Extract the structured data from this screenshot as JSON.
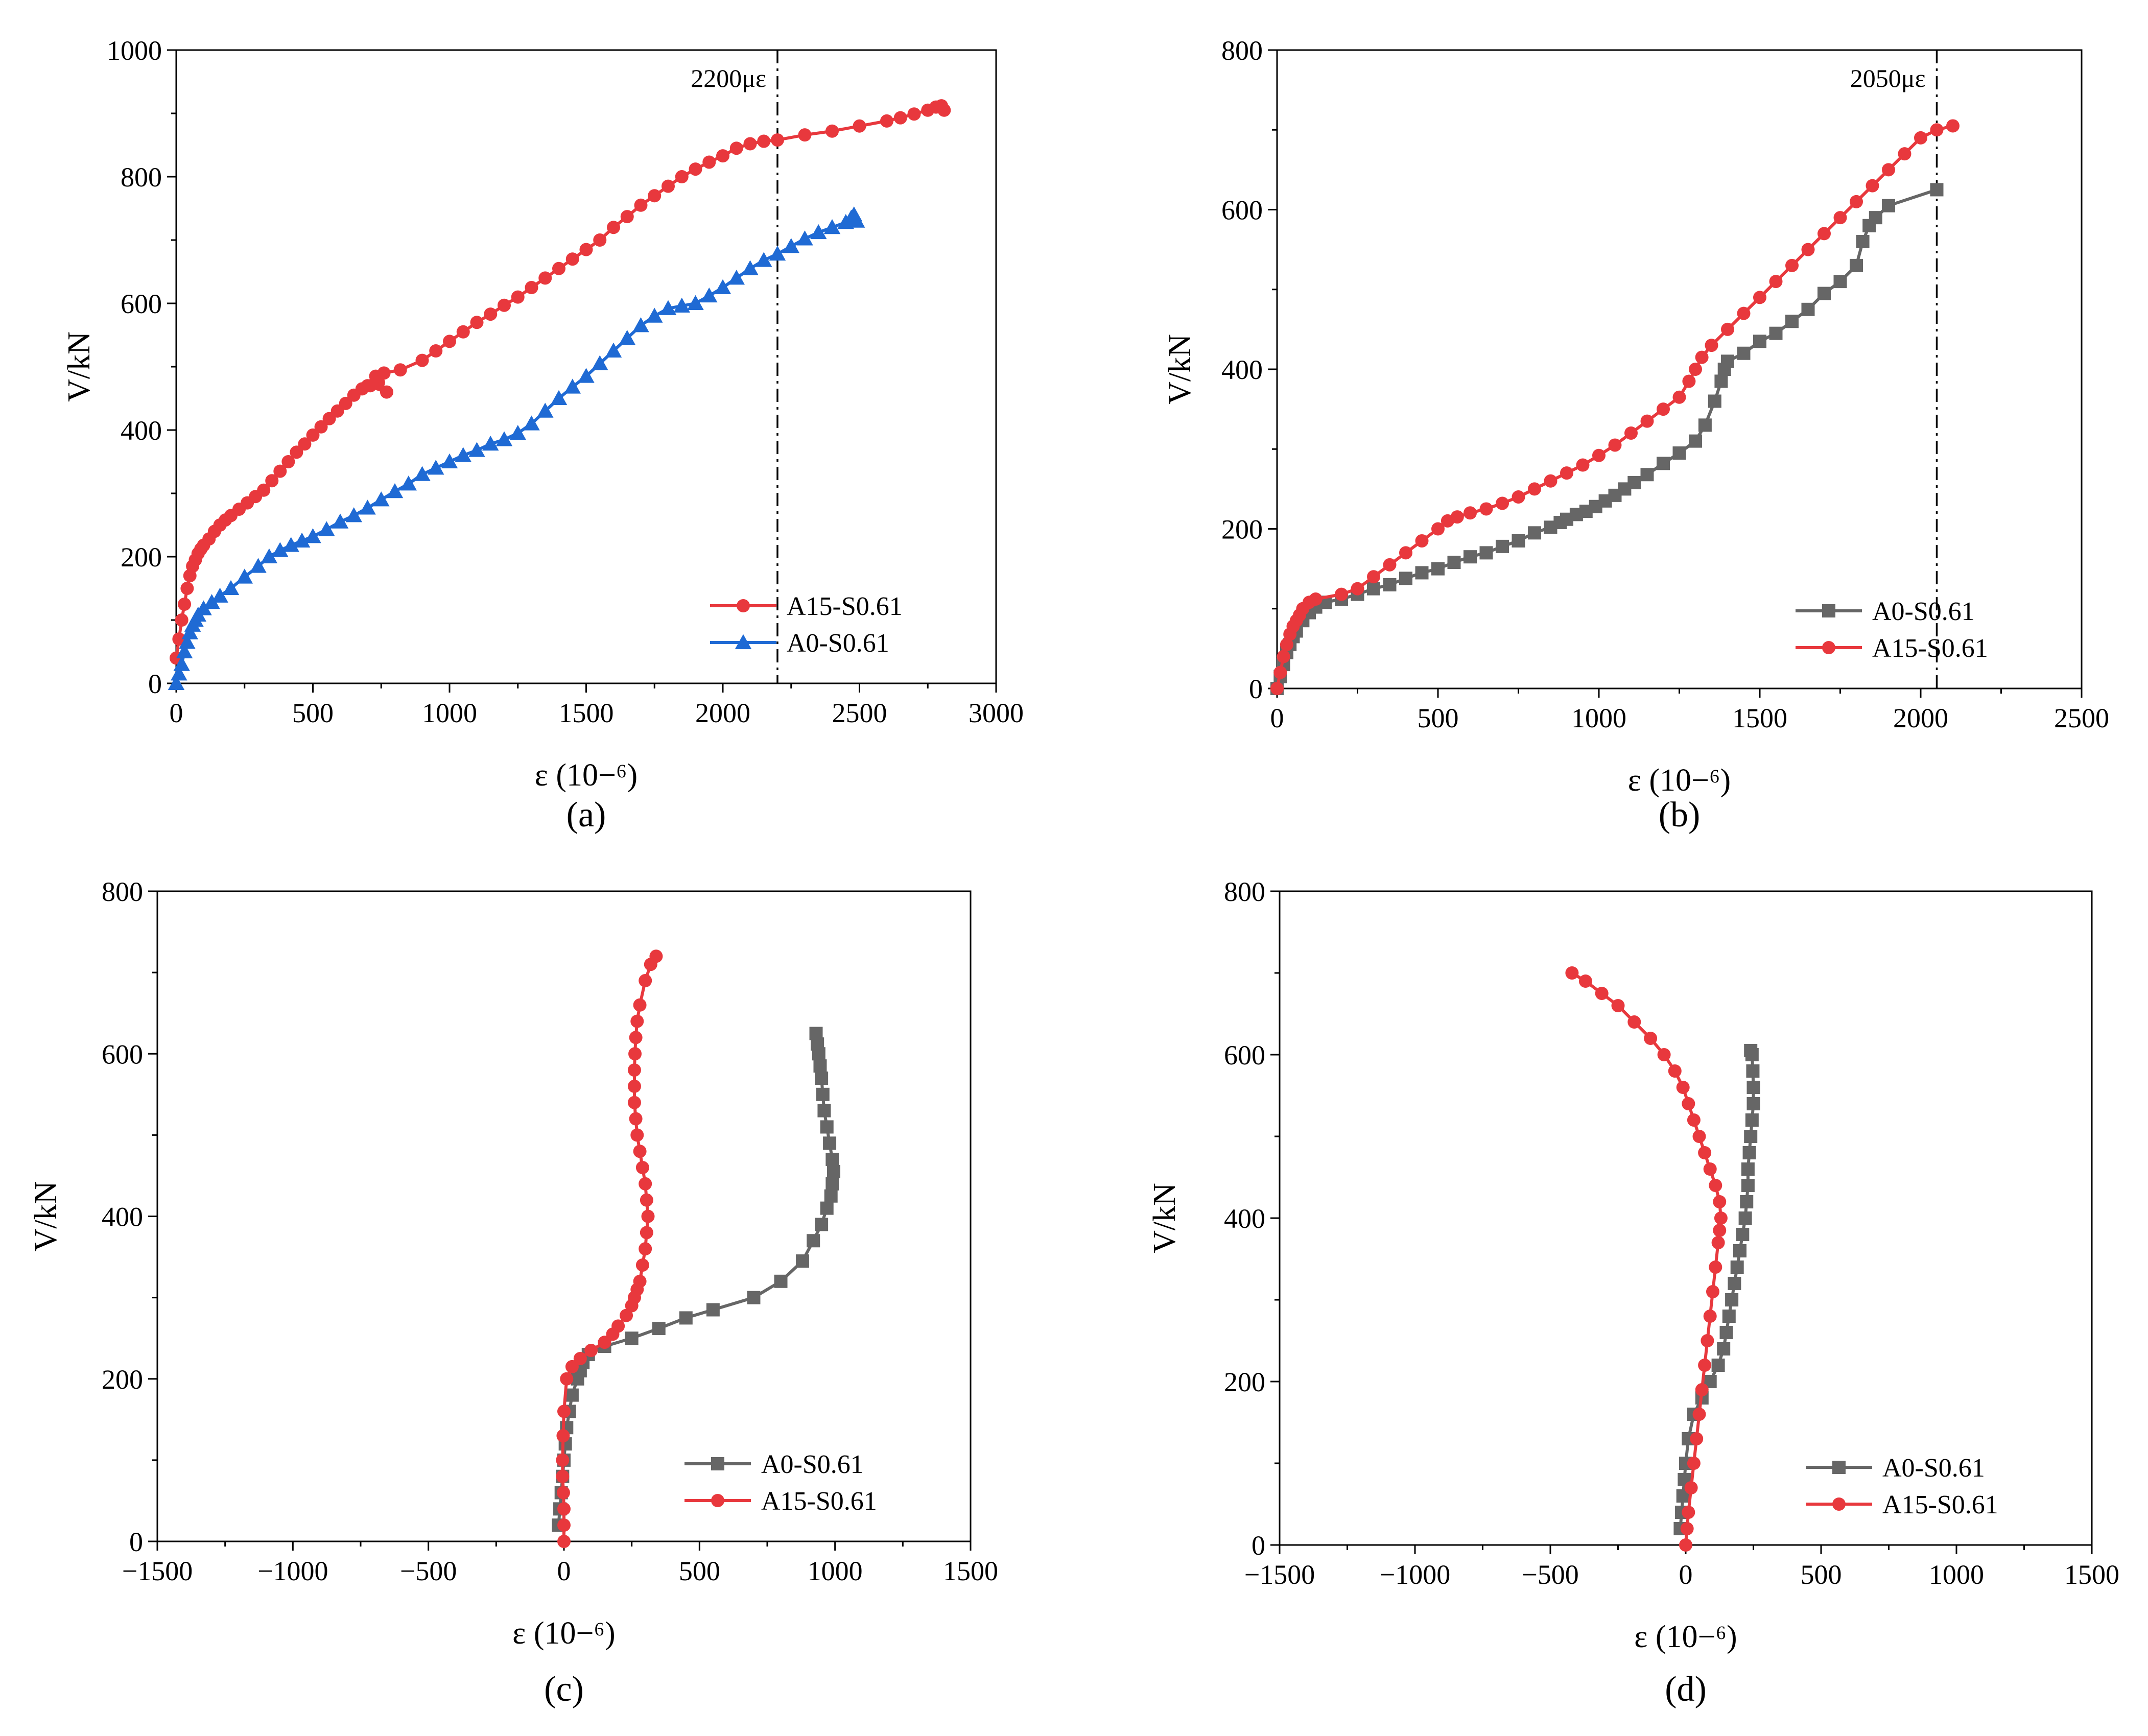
{
  "chart_data": [
    {
      "type": "line",
      "panel_label": "(a)",
      "xlabel": "ε (10−⁶)",
      "ylabel": "V/kN",
      "xlim": [
        0,
        3000
      ],
      "ylim": [
        0,
        1000
      ],
      "xticks": [
        0,
        500,
        1000,
        1500,
        2000,
        2500,
        3000
      ],
      "yticks": [
        0,
        200,
        400,
        600,
        800,
        1000
      ],
      "xtick_labels": [
        "0",
        "500",
        "1000",
        "1500",
        "2000",
        "2500",
        "3000"
      ],
      "ytick_labels": [
        "0",
        "200",
        "400",
        "600",
        "800",
        "1000"
      ],
      "legend_position": "bottom-right",
      "reference_line": {
        "x": 2200,
        "label": "2200με"
      },
      "series": [
        {
          "name": "A15-S0.61",
          "color": "#e8383d",
          "marker": "circle",
          "x": [
            0,
            10,
            20,
            30,
            40,
            50,
            60,
            70,
            80,
            90,
            100,
            120,
            140,
            160,
            180,
            200,
            230,
            260,
            290,
            320,
            350,
            380,
            410,
            440,
            470,
            500,
            530,
            560,
            590,
            620,
            650,
            680,
            710,
            740,
            770,
            700,
            730,
            760,
            820,
            900,
            950,
            1000,
            1050,
            1100,
            1150,
            1200,
            1250,
            1300,
            1350,
            1400,
            1450,
            1500,
            1550,
            1600,
            1650,
            1700,
            1750,
            1800,
            1850,
            1900,
            1950,
            2000,
            2050,
            2100,
            2150,
            2200,
            2300,
            2400,
            2500,
            2600,
            2650,
            2700,
            2750,
            2780,
            2800,
            2810
          ],
          "y": [
            40,
            70,
            100,
            125,
            150,
            170,
            185,
            195,
            205,
            212,
            218,
            228,
            240,
            250,
            258,
            265,
            275,
            285,
            295,
            305,
            320,
            335,
            350,
            365,
            378,
            392,
            405,
            418,
            430,
            442,
            455,
            465,
            470,
            475,
            460,
            470,
            485,
            490,
            495,
            510,
            525,
            540,
            555,
            570,
            583,
            597,
            610,
            625,
            640,
            655,
            670,
            685,
            700,
            720,
            737,
            755,
            770,
            785,
            800,
            812,
            823,
            833,
            845,
            852,
            856,
            858,
            866,
            872,
            880,
            888,
            893,
            899,
            905,
            910,
            912,
            905
          ]
        },
        {
          "name": "A0-S0.61",
          "color": "#1f6ad4",
          "marker": "triangle",
          "x": [
            0,
            10,
            20,
            30,
            40,
            50,
            60,
            70,
            80,
            100,
            130,
            160,
            200,
            250,
            300,
            340,
            380,
            420,
            460,
            500,
            550,
            600,
            650,
            700,
            750,
            800,
            850,
            900,
            950,
            1000,
            1050,
            1100,
            1150,
            1200,
            1250,
            1300,
            1350,
            1400,
            1450,
            1500,
            1550,
            1600,
            1650,
            1700,
            1750,
            1800,
            1850,
            1900,
            1950,
            2000,
            2050,
            2100,
            2150,
            2200,
            2250,
            2300,
            2350,
            2400,
            2450,
            2470,
            2480,
            2490
          ],
          "y": [
            0,
            15,
            30,
            50,
            65,
            80,
            92,
            100,
            108,
            118,
            128,
            138,
            150,
            168,
            185,
            200,
            210,
            218,
            225,
            232,
            243,
            255,
            265,
            277,
            290,
            303,
            315,
            330,
            340,
            350,
            360,
            368,
            378,
            385,
            395,
            410,
            430,
            450,
            468,
            485,
            505,
            525,
            545,
            565,
            580,
            592,
            596,
            600,
            612,
            625,
            640,
            655,
            668,
            678,
            690,
            702,
            712,
            720,
            728,
            735,
            740,
            730
          ]
        }
      ]
    },
    {
      "type": "line",
      "panel_label": "(b)",
      "xlabel": "ε (10−⁶)",
      "ylabel": "V/kN",
      "xlim": [
        0,
        2500
      ],
      "ylim": [
        0,
        800
      ],
      "xticks": [
        0,
        500,
        1000,
        1500,
        2000,
        2500
      ],
      "yticks": [
        0,
        200,
        400,
        600,
        800
      ],
      "xtick_labels": [
        "0",
        "500",
        "1000",
        "1500",
        "2000",
        "2500"
      ],
      "ytick_labels": [
        "0",
        "200",
        "400",
        "600",
        "800"
      ],
      "legend_position": "bottom-right",
      "reference_line": {
        "x": 2050,
        "label": "2050με"
      },
      "series": [
        {
          "name": "A0-S0.61",
          "color": "#666666",
          "marker": "square",
          "x": [
            0,
            10,
            20,
            30,
            40,
            50,
            60,
            80,
            100,
            120,
            150,
            200,
            250,
            300,
            350,
            400,
            450,
            500,
            550,
            600,
            650,
            700,
            750,
            800,
            850,
            880,
            900,
            930,
            960,
            990,
            1020,
            1050,
            1080,
            1110,
            1150,
            1200,
            1250,
            1300,
            1330,
            1360,
            1380,
            1390,
            1400,
            1450,
            1500,
            1550,
            1600,
            1650,
            1700,
            1750,
            1800,
            1820,
            1840,
            1860,
            1900,
            2050
          ],
          "y": [
            0,
            15,
            30,
            45,
            55,
            65,
            72,
            85,
            95,
            102,
            108,
            112,
            118,
            125,
            130,
            138,
            145,
            150,
            158,
            165,
            170,
            178,
            185,
            195,
            202,
            208,
            212,
            218,
            222,
            228,
            235,
            242,
            250,
            258,
            268,
            282,
            295,
            310,
            330,
            360,
            385,
            400,
            410,
            420,
            435,
            445,
            460,
            475,
            495,
            510,
            530,
            560,
            580,
            590,
            605,
            625
          ]
        },
        {
          "name": "A15-S0.61",
          "color": "#e8383d",
          "marker": "circle",
          "x": [
            0,
            10,
            20,
            30,
            40,
            50,
            60,
            70,
            80,
            100,
            120,
            200,
            250,
            300,
            350,
            400,
            450,
            500,
            530,
            560,
            600,
            650,
            700,
            750,
            800,
            850,
            900,
            950,
            1000,
            1050,
            1100,
            1150,
            1200,
            1250,
            1280,
            1300,
            1320,
            1350,
            1400,
            1450,
            1500,
            1550,
            1600,
            1650,
            1700,
            1750,
            1800,
            1850,
            1900,
            1950,
            2000,
            2050,
            2100
          ],
          "y": [
            0,
            20,
            40,
            55,
            68,
            78,
            85,
            92,
            100,
            108,
            112,
            118,
            125,
            140,
            155,
            170,
            185,
            200,
            210,
            215,
            220,
            225,
            232,
            240,
            250,
            260,
            270,
            280,
            292,
            305,
            320,
            335,
            350,
            365,
            385,
            400,
            415,
            430,
            450,
            470,
            490,
            510,
            530,
            550,
            570,
            590,
            610,
            630,
            650,
            670,
            690,
            700,
            705
          ]
        }
      ]
    },
    {
      "type": "line",
      "panel_label": "(c)",
      "xlabel": "ε (10−⁶)",
      "ylabel": "V/kN",
      "xlim": [
        -1500,
        1500
      ],
      "ylim": [
        0,
        800
      ],
      "xticks": [
        -1500,
        -1000,
        -500,
        0,
        500,
        1000,
        1500
      ],
      "yticks": [
        0,
        200,
        400,
        600,
        800
      ],
      "xtick_labels": [
        "−1500",
        "−1000",
        "−500",
        "0",
        "500",
        "1000",
        "1500"
      ],
      "ytick_labels": [
        "0",
        "200",
        "400",
        "600",
        "800"
      ],
      "legend_position": "bottom-right",
      "series": [
        {
          "name": "A0-S0.61",
          "color": "#666666",
          "marker": "square",
          "x": [
            -20,
            -15,
            -10,
            -5,
            0,
            5,
            10,
            20,
            30,
            50,
            60,
            70,
            90,
            150,
            250,
            350,
            450,
            550,
            700,
            800,
            880,
            920,
            950,
            970,
            985,
            990,
            995,
            990,
            980,
            970,
            960,
            955,
            950,
            945,
            940,
            935,
            930
          ],
          "y": [
            20,
            40,
            60,
            80,
            100,
            120,
            140,
            160,
            180,
            200,
            210,
            220,
            230,
            240,
            250,
            262,
            275,
            285,
            300,
            320,
            345,
            370,
            390,
            410,
            425,
            440,
            455,
            470,
            490,
            510,
            530,
            550,
            570,
            585,
            600,
            612,
            625
          ]
        },
        {
          "name": "A15-S0.61",
          "color": "#e8383d",
          "marker": "circle",
          "x": [
            0,
            0,
            0,
            -2,
            -5,
            -5,
            -3,
            0,
            10,
            30,
            60,
            100,
            150,
            180,
            200,
            230,
            250,
            260,
            270,
            280,
            290,
            300,
            305,
            310,
            305,
            300,
            290,
            280,
            270,
            265,
            260,
            260,
            260,
            262,
            265,
            270,
            280,
            300,
            320,
            340
          ],
          "y": [
            0,
            20,
            40,
            60,
            80,
            100,
            130,
            160,
            200,
            215,
            225,
            235,
            245,
            255,
            265,
            278,
            290,
            300,
            310,
            320,
            340,
            360,
            380,
            400,
            420,
            440,
            460,
            480,
            500,
            520,
            540,
            560,
            580,
            600,
            620,
            640,
            660,
            690,
            710,
            720
          ]
        }
      ]
    },
    {
      "type": "line",
      "panel_label": "(d)",
      "xlabel": "ε (10−⁶)",
      "ylabel": "V/kN",
      "xlim": [
        -1500,
        1500
      ],
      "ylim": [
        0,
        800
      ],
      "xticks": [
        -1500,
        -1000,
        -500,
        0,
        500,
        1000,
        1500
      ],
      "yticks": [
        0,
        200,
        400,
        600,
        800
      ],
      "xtick_labels": [
        "−1500",
        "−1000",
        "−500",
        "0",
        "500",
        "1000",
        "1500"
      ],
      "ytick_labels": [
        "0",
        "200",
        "400",
        "600",
        "800"
      ],
      "legend_position": "bottom-right",
      "series": [
        {
          "name": "A0-S0.61",
          "color": "#666666",
          "marker": "square",
          "x": [
            -20,
            -15,
            -10,
            -5,
            0,
            10,
            30,
            60,
            90,
            120,
            140,
            150,
            160,
            170,
            180,
            190,
            200,
            210,
            220,
            225,
            230,
            230,
            235,
            240,
            245,
            250,
            250,
            248,
            245,
            240
          ],
          "y": [
            20,
            40,
            60,
            80,
            100,
            130,
            160,
            180,
            200,
            220,
            240,
            260,
            280,
            300,
            320,
            340,
            360,
            380,
            400,
            420,
            440,
            460,
            480,
            500,
            520,
            540,
            560,
            580,
            600,
            605
          ]
        },
        {
          "name": "A15-S0.61",
          "color": "#e8383d",
          "marker": "circle",
          "x": [
            0,
            5,
            10,
            20,
            30,
            40,
            50,
            60,
            70,
            80,
            90,
            100,
            110,
            120,
            125,
            130,
            125,
            110,
            90,
            70,
            50,
            30,
            10,
            -10,
            -40,
            -80,
            -130,
            -190,
            -250,
            -310,
            -370,
            -420
          ],
          "y": [
            0,
            20,
            40,
            70,
            100,
            130,
            160,
            190,
            220,
            250,
            280,
            310,
            340,
            370,
            385,
            400,
            420,
            440,
            460,
            480,
            500,
            520,
            540,
            560,
            580,
            600,
            620,
            640,
            660,
            675,
            690,
            700
          ]
        }
      ]
    }
  ]
}
